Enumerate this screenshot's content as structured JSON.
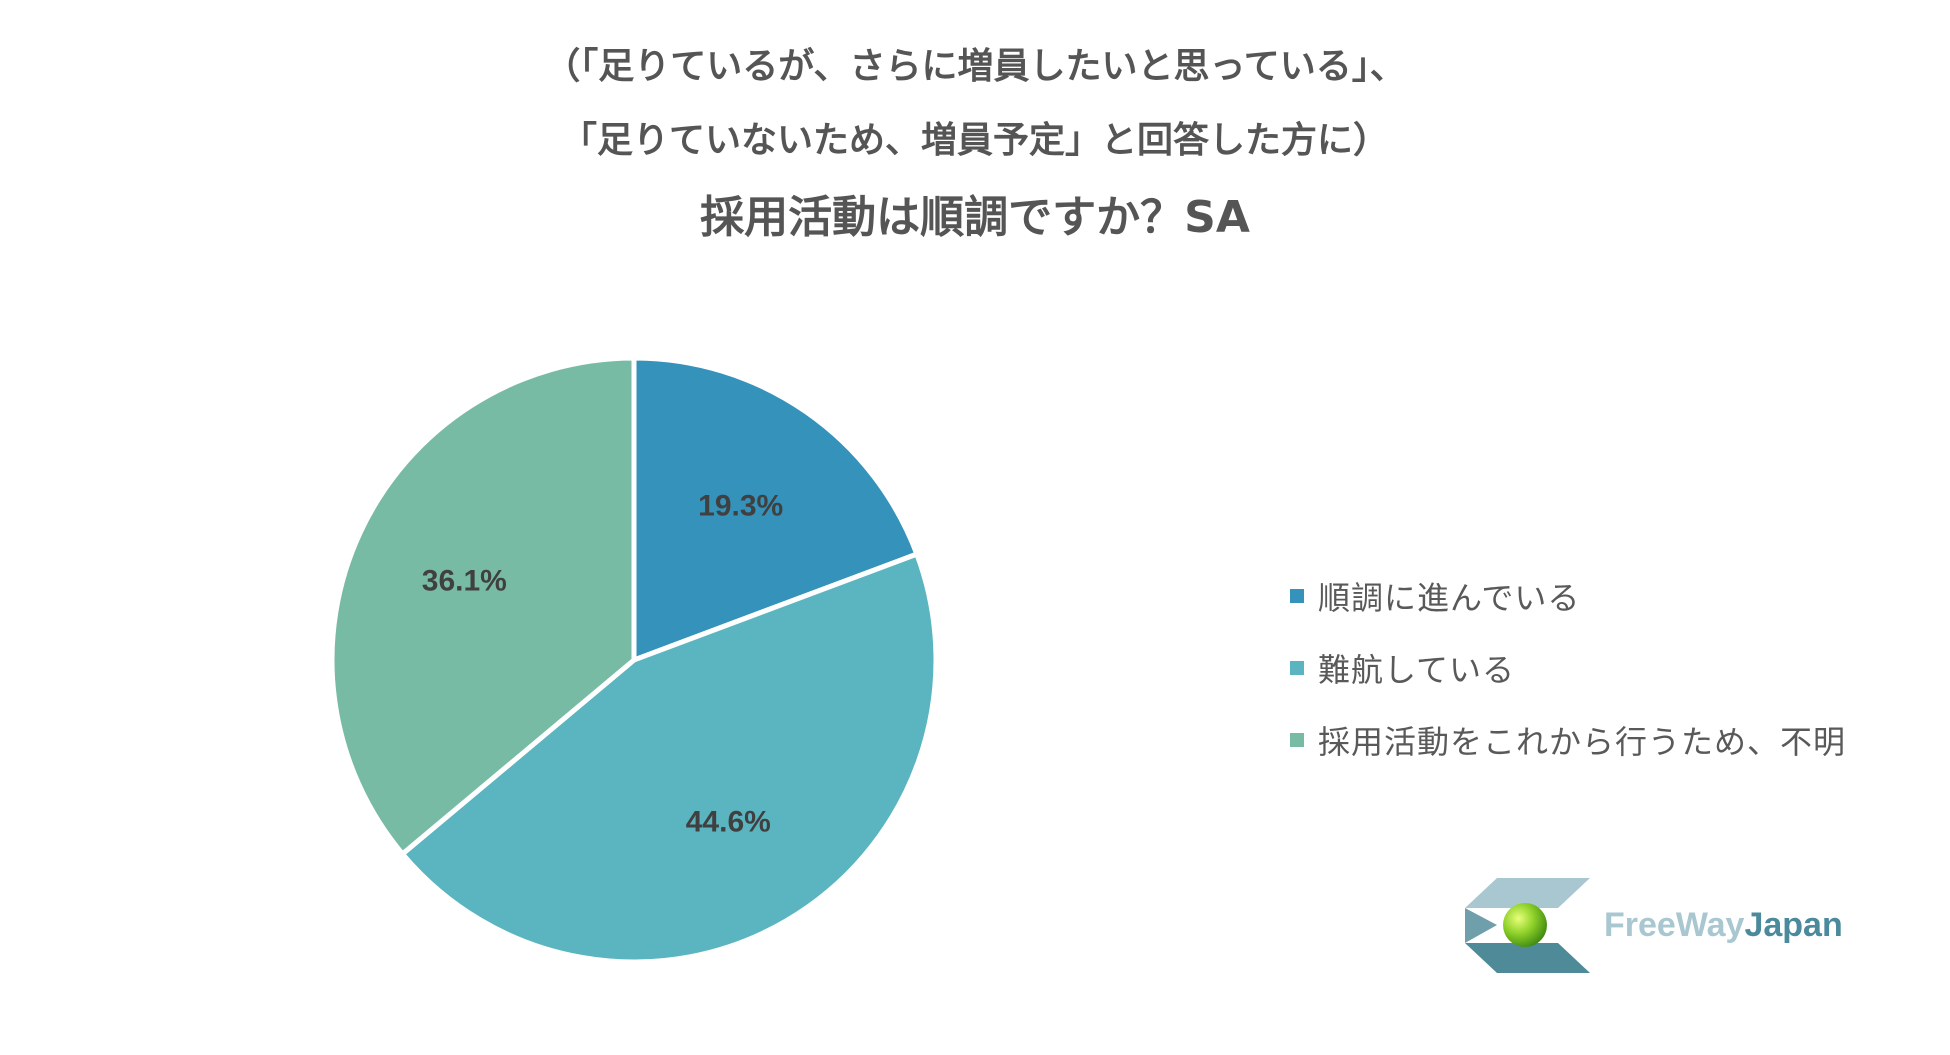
{
  "title": {
    "line1": "（「足りているが、さらに増員したいと思っている」、",
    "line2": "「足りていないため、増員予定」と回答した方に）",
    "main": "採用活動は順調ですか？SA"
  },
  "chart_data": {
    "type": "pie",
    "slices": [
      {
        "label": "順調に進んでいる",
        "value": 19.3,
        "display": "19.3%",
        "color": "#3592ba"
      },
      {
        "label": "難航している",
        "value": 44.6,
        "display": "44.6%",
        "color": "#5ab5c0"
      },
      {
        "label": "採用活動をこれから行うため、不明",
        "value": 36.1,
        "display": "36.1%",
        "color": "#78bba5"
      }
    ],
    "legend_position": "right"
  },
  "logo": {
    "text_part1": "FreeWay",
    "text_part2": "Japan"
  }
}
